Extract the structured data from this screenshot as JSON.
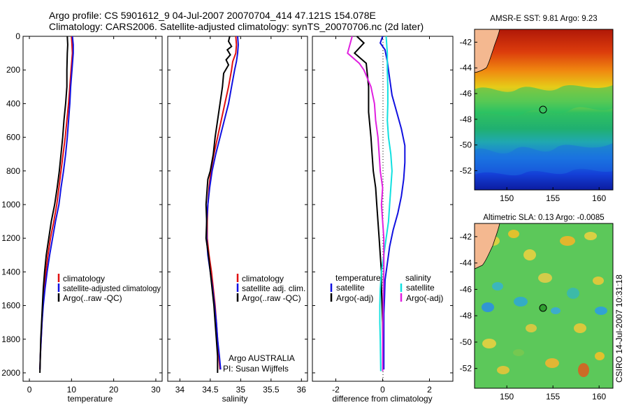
{
  "header": {
    "line1": "Argo profile: CS 5901612_9 04-Jul-2007 20070704_414 47.121S 154.078E",
    "line2": "Climatology: CARS2006. Satellite-adjusted climatology: synTS_20070706.nc (2d later)"
  },
  "side_label": "CSIRO 14-Jul-2007 10:31:18",
  "credit": {
    "line1": "Argo AUSTRALIA",
    "line2": "PI: Susan Wijffels"
  },
  "colors": {
    "climatology": "#e01010",
    "satellite": "#1010e0",
    "argo": "#000000",
    "salinity_satellite": "#10e0e0",
    "salinity_argo": "#e020e0"
  },
  "chart_data": [
    {
      "type": "line",
      "xlabel": "temperature",
      "xticks": [
        "0",
        "10",
        "20",
        "30"
      ],
      "yticks": [
        "0",
        "200",
        "400",
        "600",
        "800",
        "1000",
        "1200",
        "1400",
        "1600",
        "1800",
        "2000"
      ],
      "xlim": [
        -1.5,
        31.5
      ],
      "ylim": [
        2050,
        0
      ],
      "y_reversed": true,
      "legend": {
        "position": "lower-right",
        "entries": [
          "climatology",
          "satellite-adjusted climatology",
          "Argo(..raw -QC)"
        ]
      },
      "series": [
        {
          "name": "climatology",
          "color": "#e01010",
          "points": [
            [
              10.0,
              0
            ],
            [
              10.1,
              50
            ],
            [
              10.2,
              100
            ],
            [
              9.9,
              200
            ],
            [
              9.6,
              300
            ],
            [
              9.3,
              400
            ],
            [
              8.9,
              500
            ],
            [
              8.5,
              600
            ],
            [
              8.0,
              700
            ],
            [
              7.5,
              800
            ],
            [
              7.0,
              900
            ],
            [
              6.5,
              1000
            ],
            [
              5.8,
              1100
            ],
            [
              5.0,
              1200
            ],
            [
              4.4,
              1300
            ],
            [
              3.9,
              1400
            ],
            [
              3.5,
              1500
            ],
            [
              3.2,
              1600
            ],
            [
              3.0,
              1700
            ],
            [
              2.8,
              1800
            ],
            [
              2.6,
              1900
            ],
            [
              2.5,
              1980
            ]
          ]
        },
        {
          "name": "satellite-adjusted climatology",
          "color": "#1010e0",
          "points": [
            [
              10.2,
              0
            ],
            [
              10.4,
              50
            ],
            [
              10.4,
              100
            ],
            [
              10.1,
              200
            ],
            [
              9.8,
              300
            ],
            [
              9.6,
              400
            ],
            [
              9.3,
              500
            ],
            [
              9.0,
              600
            ],
            [
              8.6,
              700
            ],
            [
              8.1,
              800
            ],
            [
              7.5,
              900
            ],
            [
              7.0,
              1000
            ],
            [
              6.2,
              1100
            ],
            [
              5.5,
              1200
            ],
            [
              4.8,
              1300
            ],
            [
              4.2,
              1400
            ],
            [
              3.7,
              1500
            ],
            [
              3.3,
              1600
            ],
            [
              3.0,
              1700
            ],
            [
              2.8,
              1800
            ],
            [
              2.6,
              1900
            ],
            [
              2.5,
              1980
            ]
          ]
        },
        {
          "name": "Argo(..raw -QC)",
          "color": "#000000",
          "points": [
            [
              9.0,
              0
            ],
            [
              9.1,
              50
            ],
            [
              9.0,
              100
            ],
            [
              8.9,
              200
            ],
            [
              8.9,
              300
            ],
            [
              8.6,
              400
            ],
            [
              8.2,
              500
            ],
            [
              7.9,
              600
            ],
            [
              7.5,
              700
            ],
            [
              7.1,
              800
            ],
            [
              6.6,
              900
            ],
            [
              6.0,
              1000
            ],
            [
              5.2,
              1100
            ],
            [
              4.6,
              1200
            ],
            [
              4.0,
              1300
            ],
            [
              3.6,
              1400
            ],
            [
              3.3,
              1500
            ],
            [
              3.1,
              1600
            ],
            [
              2.9,
              1700
            ],
            [
              2.7,
              1800
            ],
            [
              2.6,
              1900
            ],
            [
              2.5,
              2000
            ]
          ]
        }
      ]
    },
    {
      "type": "line",
      "xlabel": "salinity",
      "xticks": [
        "34",
        "34.5",
        "35",
        "35.5",
        "36"
      ],
      "yticks": [],
      "xlim": [
        33.8,
        36.1
      ],
      "ylim": [
        2050,
        0
      ],
      "y_reversed": true,
      "legend": {
        "position": "lower-right",
        "entries": [
          "climatology",
          "satellite adj. clim.",
          "Argo(..raw -QC)"
        ]
      },
      "series": [
        {
          "name": "climatology",
          "color": "#e01010",
          "points": [
            [
              34.92,
              0
            ],
            [
              34.93,
              50
            ],
            [
              34.92,
              100
            ],
            [
              34.87,
              150
            ],
            [
              34.85,
              200
            ],
            [
              34.8,
              300
            ],
            [
              34.74,
              400
            ],
            [
              34.68,
              500
            ],
            [
              34.62,
              600
            ],
            [
              34.56,
              700
            ],
            [
              34.51,
              800
            ],
            [
              34.48,
              900
            ],
            [
              34.46,
              1000
            ],
            [
              34.45,
              1100
            ],
            [
              34.45,
              1200
            ],
            [
              34.48,
              1300
            ],
            [
              34.52,
              1400
            ],
            [
              34.55,
              1500
            ],
            [
              34.58,
              1600
            ],
            [
              34.6,
              1700
            ],
            [
              34.62,
              1800
            ],
            [
              34.64,
              1900
            ],
            [
              34.66,
              1980
            ]
          ]
        },
        {
          "name": "satellite adj. clim.",
          "color": "#1010e0",
          "points": [
            [
              34.95,
              0
            ],
            [
              34.96,
              50
            ],
            [
              34.95,
              100
            ],
            [
              34.93,
              150
            ],
            [
              34.9,
              200
            ],
            [
              34.85,
              300
            ],
            [
              34.8,
              400
            ],
            [
              34.73,
              500
            ],
            [
              34.66,
              600
            ],
            [
              34.59,
              700
            ],
            [
              34.53,
              800
            ],
            [
              34.49,
              900
            ],
            [
              34.46,
              1000
            ],
            [
              34.44,
              1100
            ],
            [
              34.44,
              1200
            ],
            [
              34.46,
              1300
            ],
            [
              34.5,
              1400
            ],
            [
              34.54,
              1500
            ],
            [
              34.57,
              1600
            ],
            [
              34.6,
              1700
            ],
            [
              34.62,
              1800
            ],
            [
              34.65,
              1900
            ],
            [
              34.67,
              1980
            ]
          ]
        },
        {
          "name": "Argo(..raw -QC)",
          "color": "#000000",
          "points": [
            [
              34.82,
              0
            ],
            [
              34.8,
              30
            ],
            [
              34.85,
              60
            ],
            [
              34.78,
              80
            ],
            [
              34.83,
              110
            ],
            [
              34.76,
              140
            ],
            [
              34.8,
              170
            ],
            [
              34.72,
              220
            ],
            [
              34.7,
              300
            ],
            [
              34.66,
              400
            ],
            [
              34.62,
              500
            ],
            [
              34.58,
              600
            ],
            [
              34.55,
              700
            ],
            [
              34.5,
              800
            ],
            [
              34.46,
              850
            ],
            [
              34.45,
              900
            ],
            [
              34.43,
              1000
            ],
            [
              34.44,
              1100
            ],
            [
              34.43,
              1200
            ],
            [
              34.47,
              1300
            ],
            [
              34.5,
              1400
            ],
            [
              34.53,
              1500
            ],
            [
              34.56,
              1600
            ],
            [
              34.58,
              1700
            ],
            [
              34.6,
              1800
            ],
            [
              34.62,
              1900
            ],
            [
              34.62,
              2000
            ]
          ]
        }
      ]
    },
    {
      "type": "line",
      "xlabel": "difference from climatology",
      "xticks": [
        "-2",
        "0",
        "2"
      ],
      "yticks": [],
      "xlim": [
        -3,
        3
      ],
      "ylim": [
        2050,
        0
      ],
      "y_reversed": true,
      "zero_line": "dotted",
      "legend": {
        "position": "lower",
        "groups": [
          {
            "heading": "temperature",
            "entries": [
              "satellite",
              "Argo(-adj)"
            ]
          },
          {
            "heading": "salinity",
            "entries": [
              "satellite",
              "Argo(-adj)"
            ]
          }
        ]
      },
      "series": [
        {
          "name": "temperature satellite",
          "color": "#1010e0",
          "points": [
            [
              0.0,
              0
            ],
            [
              -0.1,
              40
            ],
            [
              0.1,
              80
            ],
            [
              0.2,
              150
            ],
            [
              0.3,
              250
            ],
            [
              0.4,
              350
            ],
            [
              0.6,
              450
            ],
            [
              0.8,
              550
            ],
            [
              0.95,
              650
            ],
            [
              0.95,
              750
            ],
            [
              0.9,
              850
            ],
            [
              0.8,
              950
            ],
            [
              0.65,
              1050
            ],
            [
              0.45,
              1150
            ],
            [
              0.3,
              1250
            ],
            [
              0.2,
              1350
            ],
            [
              0.1,
              1450
            ],
            [
              0.08,
              1550
            ],
            [
              0.05,
              1650
            ],
            [
              0.05,
              1800
            ],
            [
              0.05,
              1980
            ]
          ]
        },
        {
          "name": "temperature Argo(-adj)",
          "color": "#000000",
          "points": [
            [
              -1.1,
              0
            ],
            [
              -0.8,
              40
            ],
            [
              -1.2,
              100
            ],
            [
              -0.7,
              160
            ],
            [
              -0.6,
              300
            ],
            [
              -0.6,
              450
            ],
            [
              -0.5,
              600
            ],
            [
              -0.45,
              700
            ],
            [
              -0.4,
              800
            ],
            [
              -0.3,
              900
            ],
            [
              -0.25,
              1000
            ],
            [
              -0.2,
              1100
            ],
            [
              -0.15,
              1200
            ],
            [
              -0.1,
              1300
            ],
            [
              -0.05,
              1400
            ],
            [
              -0.05,
              1500
            ],
            [
              0.0,
              1700
            ],
            [
              0.0,
              1990
            ]
          ]
        },
        {
          "name": "salinity satellite",
          "color": "#10e0e0",
          "points": [
            [
              0.15,
              0
            ],
            [
              0.2,
              100
            ],
            [
              0.2,
              200
            ],
            [
              0.22,
              300
            ],
            [
              0.22,
              400
            ],
            [
              0.2,
              500
            ],
            [
              0.25,
              600
            ],
            [
              0.35,
              700
            ],
            [
              0.4,
              800
            ],
            [
              0.35,
              900
            ],
            [
              0.3,
              1000
            ],
            [
              0.25,
              1100
            ],
            [
              0.15,
              1200
            ],
            [
              0.05,
              1300
            ],
            [
              -0.05,
              1400
            ],
            [
              -0.1,
              1500
            ],
            [
              -0.12,
              1600
            ],
            [
              -0.12,
              1700
            ],
            [
              -0.1,
              1800
            ],
            [
              -0.08,
              1990
            ]
          ]
        },
        {
          "name": "salinity Argo(-adj)",
          "color": "#e020e0",
          "points": [
            [
              -1.3,
              0
            ],
            [
              -1.5,
              100
            ],
            [
              -1.0,
              160
            ],
            [
              -0.8,
              200
            ],
            [
              -0.5,
              300
            ],
            [
              -0.35,
              400
            ],
            [
              -0.3,
              500
            ],
            [
              -0.2,
              600
            ],
            [
              -0.15,
              700
            ],
            [
              -0.1,
              800
            ],
            [
              0.0,
              900
            ],
            [
              -0.05,
              1000
            ],
            [
              0.0,
              1100
            ],
            [
              0.05,
              1200
            ],
            [
              0.05,
              1300
            ],
            [
              0.05,
              1400
            ],
            [
              0.02,
              1600
            ],
            [
              0.0,
              1800
            ],
            [
              0.0,
              1990
            ]
          ]
        }
      ]
    },
    {
      "type": "heatmap",
      "title": "AMSR-E SST: 9.81 Argo: 9.23",
      "xticks": [
        "150",
        "155",
        "160"
      ],
      "yticks": [
        "-42",
        "-44",
        "-46",
        "-48",
        "-50",
        "-52"
      ],
      "xlim": [
        146.5,
        161.5
      ],
      "ylim": [
        -53.5,
        -41
      ],
      "marker": {
        "lon": 154.078,
        "lat": -47.121
      }
    },
    {
      "type": "heatmap",
      "title": "Altimetric SLA: 0.13 Argo: -0.0085",
      "xticks": [
        "150",
        "155",
        "160"
      ],
      "yticks": [
        "-42",
        "-44",
        "-46",
        "-48",
        "-50",
        "-52"
      ],
      "xlim": [
        146.5,
        161.5
      ],
      "ylim": [
        -53.5,
        -41
      ],
      "marker": {
        "lon": 154.078,
        "lat": -47.121
      }
    }
  ]
}
